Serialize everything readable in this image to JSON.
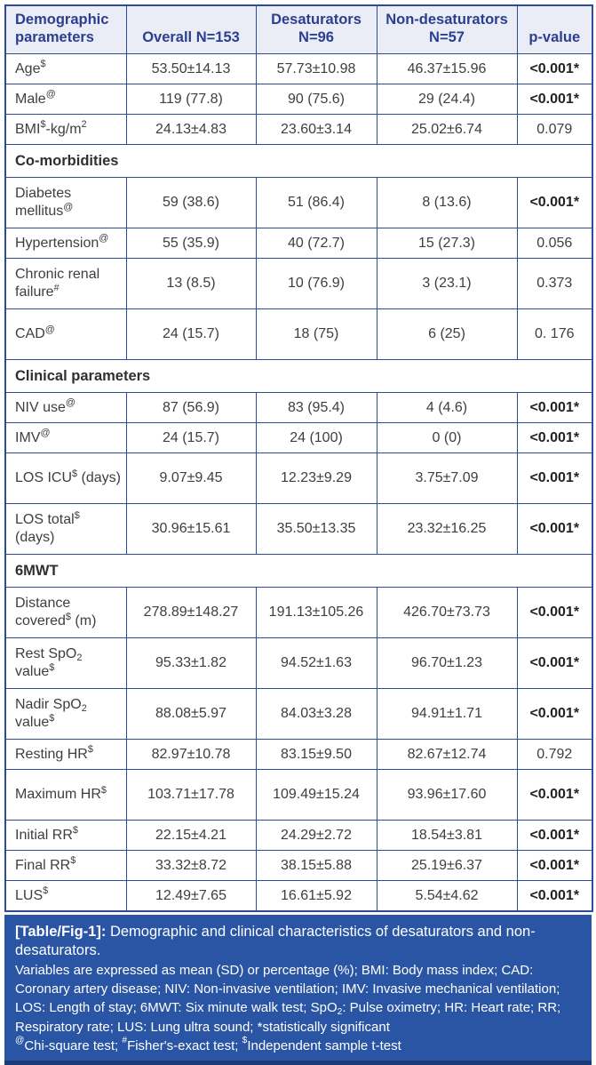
{
  "colors": {
    "border_blue": "#2e4c95",
    "header_bg": "#eaecf6",
    "header_text": "#2c3e8f",
    "body_text": "#3e3e3e",
    "caption_bg": "#2a55a4",
    "caption_text": "#ffffff"
  },
  "table": {
    "columns": [
      {
        "label": "Demographic parameters"
      },
      {
        "label": "Overall N=153"
      },
      {
        "label": "Desaturators N=96"
      },
      {
        "label": "Non-desaturators N=57"
      },
      {
        "label": "p-value"
      }
    ],
    "rows": [
      {
        "type": "data",
        "label": "Age^{$}",
        "values": [
          "53.50±14.13",
          "57.73±10.98",
          "46.37±15.96"
        ],
        "p": "<0.001*",
        "sig": true
      },
      {
        "type": "data",
        "label": "Male^{@}",
        "values": [
          "119 (77.8)",
          "90 (75.6)",
          "29 (24.4)"
        ],
        "p": "<0.001*",
        "sig": true
      },
      {
        "type": "data",
        "label": "BMI^{$}-kg/m^{2}",
        "values": [
          "24.13±4.83",
          "23.60±3.14",
          "25.02±6.74"
        ],
        "p": "0.079",
        "sig": false
      },
      {
        "type": "section",
        "label": "Co-morbidities"
      },
      {
        "type": "data",
        "label": "Diabetes mellitus^{@}",
        "values": [
          "59 (38.6)",
          "51 (86.4)",
          "8 (13.6)"
        ],
        "p": "<0.001*",
        "sig": true,
        "tall": true
      },
      {
        "type": "data",
        "label": "Hypertension^{@}",
        "values": [
          "55 (35.9)",
          "40 (72.7)",
          "15 (27.3)"
        ],
        "p": "0.056",
        "sig": false
      },
      {
        "type": "data",
        "label": "Chronic renal failure^{#}",
        "values": [
          "13 (8.5)",
          "10 (76.9)",
          "3 (23.1)"
        ],
        "p": "0.373",
        "sig": false,
        "tall": true
      },
      {
        "type": "data",
        "label": "CAD^{@}",
        "values": [
          "24 (15.7)",
          "18 (75)",
          "6 (25)"
        ],
        "p": "0. 176",
        "sig": false,
        "tall": true
      },
      {
        "type": "section",
        "label": "Clinical parameters"
      },
      {
        "type": "data",
        "label": "NIV use^{@}",
        "values": [
          "87 (56.9)",
          "83 (95.4)",
          "4 (4.6)"
        ],
        "p": "<0.001*",
        "sig": true
      },
      {
        "type": "data",
        "label": "IMV^{@}",
        "values": [
          "24 (15.7)",
          "24 (100)",
          "0 (0)"
        ],
        "p": "<0.001*",
        "sig": true
      },
      {
        "type": "data",
        "label": "LOS ICU^{$} (days)",
        "values": [
          "9.07±9.45",
          "12.23±9.29",
          "3.75±7.09"
        ],
        "p": "<0.001*",
        "sig": true,
        "tall": true
      },
      {
        "type": "data",
        "label": "LOS total^{$} (days)",
        "values": [
          "30.96±15.61",
          "35.50±13.35",
          "23.32±16.25"
        ],
        "p": "<0.001*",
        "sig": true,
        "tall": true
      },
      {
        "type": "section",
        "label": "6MWT"
      },
      {
        "type": "data",
        "label": "Distance covered^{$} (m)",
        "values": [
          "278.89±148.27",
          "191.13±105.26",
          "426.70±73.73"
        ],
        "p": "<0.001*",
        "sig": true,
        "tall": true
      },
      {
        "type": "data",
        "label": "Rest SpO_{2} value^{$}",
        "values": [
          "95.33±1.82",
          "94.52±1.63",
          "96.70±1.23"
        ],
        "p": "<0.001*",
        "sig": true,
        "tall": true
      },
      {
        "type": "data",
        "label": "Nadir SpO_{2} value^{$}",
        "values": [
          "88.08±5.97",
          "84.03±3.28",
          "94.91±1.71"
        ],
        "p": "<0.001*",
        "sig": true,
        "tall": true
      },
      {
        "type": "data",
        "label": "Resting HR^{$}",
        "values": [
          "82.97±10.78",
          "83.15±9.50",
          "82.67±12.74"
        ],
        "p": "0.792",
        "sig": false,
        "tall": false
      },
      {
        "type": "data",
        "label": "Maximum HR^{$}",
        "values": [
          "103.71±17.78",
          "109.49±15.24",
          "93.96±17.60"
        ],
        "p": "<0.001*",
        "sig": true,
        "tall": true
      },
      {
        "type": "data",
        "label": "Initial RR^{$}",
        "values": [
          "22.15±4.21",
          "24.29±2.72",
          "18.54±3.81"
        ],
        "p": "<0.001*",
        "sig": true
      },
      {
        "type": "data",
        "label": "Final RR^{$}",
        "values": [
          "33.32±8.72",
          "38.15±5.88",
          "25.19±6.37"
        ],
        "p": "<0.001*",
        "sig": true
      },
      {
        "type": "data",
        "label": "LUS^{$}",
        "values": [
          "12.49±7.65",
          "16.61±5.92",
          "5.54±4.62"
        ],
        "p": "<0.001*",
        "sig": true
      }
    ]
  },
  "caption": {
    "label": "[Table/Fig-1]:",
    "text": "Demographic and clinical characteristics of desaturators and non-desaturators.",
    "notes": "Variables are expressed as mean (SD) or percentage (%); BMI: Body mass index; CAD: Coronary artery disease; NIV: Non-invasive ventilation; IMV: Invasive mechanical ventilation; LOS: Length of stay; 6MWT: Six minute walk test; SpO_{2}: Pulse oximetry; HR: Heart rate; RR; Respiratory rate; LUS: Lung ultra sound; *statistically significant",
    "tests": "^{@}Chi-square test; ^{#}Fisher's-exact test; ^{$}Independent sample t-test"
  }
}
